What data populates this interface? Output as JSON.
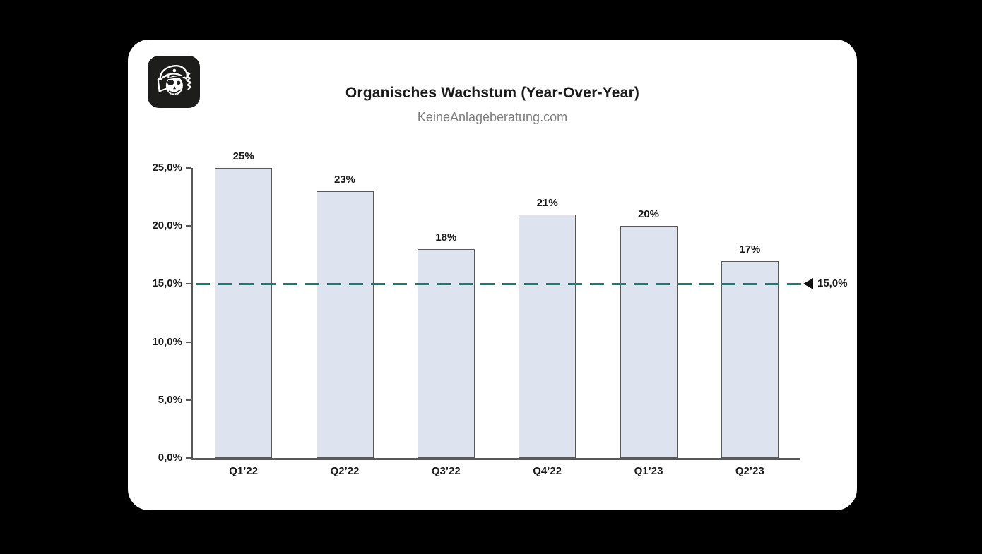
{
  "page": {
    "background_color": "#000000",
    "card_color": "#ffffff"
  },
  "logo": {
    "name": "pirate-skull-logo",
    "background_color": "#1d1d1b",
    "foreground_color": "#ffffff"
  },
  "header": {
    "title": "Organisches Wachstum (Year-Over-Year)",
    "subtitle": "KeineAnlageberatung.com"
  },
  "chart_data": {
    "type": "bar",
    "title": "Organisches Wachstum (Year-Over-Year)",
    "subtitle": "KeineAnlageberatung.com",
    "categories": [
      "Q1’22",
      "Q2’22",
      "Q3’22",
      "Q4’22",
      "Q1’23",
      "Q2’23"
    ],
    "values": [
      25,
      23,
      18,
      21,
      20,
      17
    ],
    "value_labels": [
      "25%",
      "23%",
      "18%",
      "21%",
      "20%",
      "17%"
    ],
    "y_axis": {
      "min": 0,
      "max": 25,
      "ticks": [
        {
          "value": 25,
          "label": "25,0%"
        },
        {
          "value": 20,
          "label": "20,0%"
        },
        {
          "value": 15,
          "label": "15,0%"
        },
        {
          "value": 10,
          "label": "10,0%"
        },
        {
          "value": 5,
          "label": "5,0%"
        },
        {
          "value": 0,
          "label": "0,0%"
        }
      ]
    },
    "reference_line": {
      "value": 15,
      "label": "15,0%",
      "color": "#147e74",
      "style": "dashed",
      "marker": "left-triangle"
    },
    "colors": {
      "bar_fill": "#dde3ef",
      "bar_border": "#595959",
      "axis": "#595959",
      "labels": "#1a1a1a",
      "subtitle": "#7d7d7d"
    },
    "grid": false,
    "legend": false
  }
}
